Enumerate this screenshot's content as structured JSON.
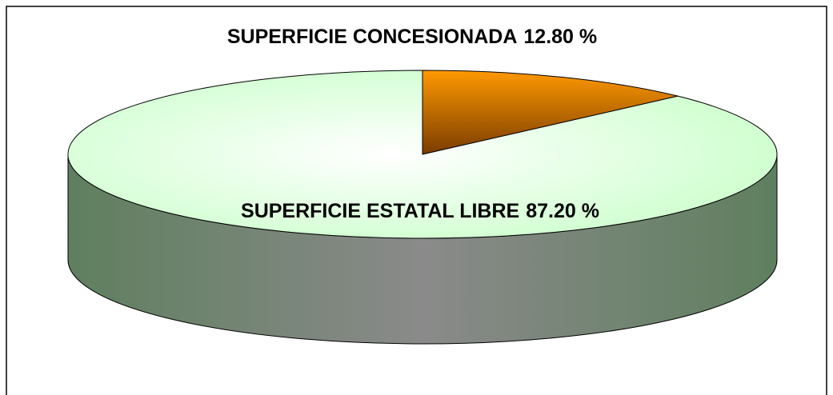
{
  "chart_data": {
    "type": "pie",
    "categories": [
      "SUPERFICIE CONCESIONADA",
      "SUPERFICIE ESTATAL LIBRE"
    ],
    "values": [
      12.8,
      87.2
    ],
    "value_labels": [
      "12.80 %",
      "87.20 %"
    ],
    "colors": [
      "#ff9900",
      "#ccffcc"
    ]
  }
}
